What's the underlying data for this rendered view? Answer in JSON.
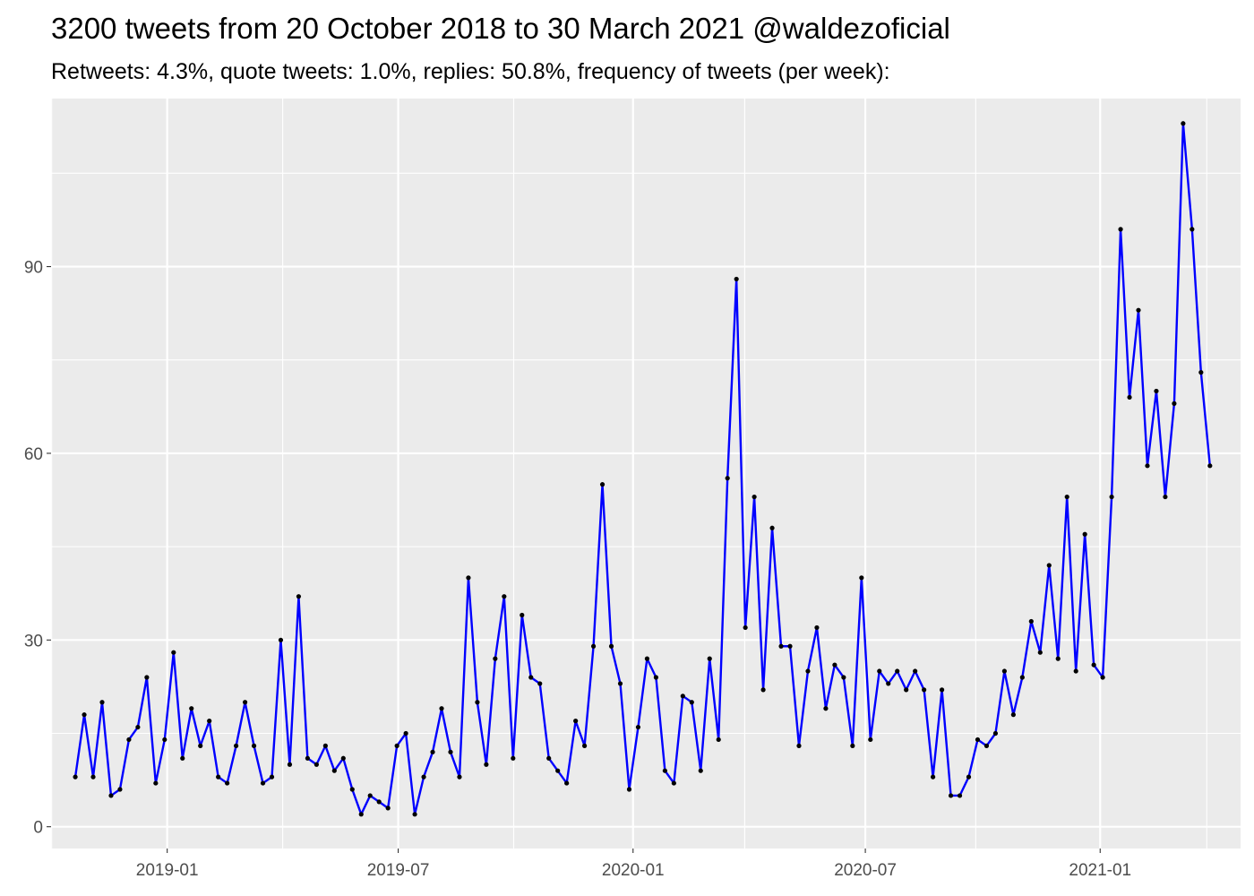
{
  "chart_data": {
    "type": "line",
    "title": "3200 tweets from 20 October 2018 to 30 March 2021 @waldezoficial",
    "subtitle": "Retweets: 4.3%, quote tweets: 1.0%, replies: 50.8%, frequency of tweets (per week):",
    "xlabel": "",
    "ylabel": "",
    "x_axis": {
      "type": "date",
      "range": [
        "2018-10-02",
        "2021-04-21"
      ],
      "tick_labels": [
        "2019-01",
        "2019-07",
        "2020-01",
        "2020-07",
        "2021-01"
      ]
    },
    "y_axis": {
      "range": [
        -3.5,
        117
      ],
      "ticks": [
        0,
        30,
        60,
        90
      ]
    },
    "grid": true,
    "background": "#ebebeb",
    "line_color": "#0000ff",
    "point_color": "#000000",
    "x": [
      "2018-10-21",
      "2018-10-28",
      "2018-11-04",
      "2018-11-11",
      "2018-11-18",
      "2018-11-25",
      "2018-12-02",
      "2018-12-09",
      "2018-12-16",
      "2018-12-23",
      "2018-12-30",
      "2019-01-06",
      "2019-01-13",
      "2019-01-20",
      "2019-01-27",
      "2019-02-03",
      "2019-02-10",
      "2019-02-17",
      "2019-02-24",
      "2019-03-03",
      "2019-03-10",
      "2019-03-17",
      "2019-03-24",
      "2019-03-31",
      "2019-04-07",
      "2019-04-14",
      "2019-04-21",
      "2019-04-28",
      "2019-05-05",
      "2019-05-12",
      "2019-05-19",
      "2019-05-26",
      "2019-06-02",
      "2019-06-09",
      "2019-06-16",
      "2019-06-23",
      "2019-06-30",
      "2019-07-07",
      "2019-07-14",
      "2019-07-21",
      "2019-07-28",
      "2019-08-04",
      "2019-08-11",
      "2019-08-18",
      "2019-08-25",
      "2019-09-01",
      "2019-09-08",
      "2019-09-15",
      "2019-09-22",
      "2019-09-29",
      "2019-10-06",
      "2019-10-13",
      "2019-10-20",
      "2019-10-27",
      "2019-11-03",
      "2019-11-10",
      "2019-11-17",
      "2019-11-24",
      "2019-12-01",
      "2019-12-08",
      "2019-12-15",
      "2019-12-22",
      "2019-12-29",
      "2020-01-05",
      "2020-01-12",
      "2020-01-19",
      "2020-01-26",
      "2020-02-02",
      "2020-02-09",
      "2020-02-16",
      "2020-02-23",
      "2020-03-01",
      "2020-03-08",
      "2020-03-15",
      "2020-03-22",
      "2020-03-29",
      "2020-04-05",
      "2020-04-12",
      "2020-04-19",
      "2020-04-26",
      "2020-05-03",
      "2020-05-10",
      "2020-05-17",
      "2020-05-24",
      "2020-05-31",
      "2020-06-07",
      "2020-06-14",
      "2020-06-21",
      "2020-06-28",
      "2020-07-05",
      "2020-07-12",
      "2020-07-19",
      "2020-07-26",
      "2020-08-02",
      "2020-08-09",
      "2020-08-16",
      "2020-08-23",
      "2020-08-30",
      "2020-09-06",
      "2020-09-13",
      "2020-09-20",
      "2020-09-27",
      "2020-10-04",
      "2020-10-11",
      "2020-10-18",
      "2020-10-25",
      "2020-11-01",
      "2020-11-08",
      "2020-11-15",
      "2020-11-22",
      "2020-11-29",
      "2020-12-06",
      "2020-12-13",
      "2020-12-20",
      "2020-12-27",
      "2021-01-03",
      "2021-01-10",
      "2021-01-17",
      "2021-01-24",
      "2021-01-31",
      "2021-02-07",
      "2021-02-14",
      "2021-02-21",
      "2021-02-28",
      "2021-03-07",
      "2021-03-14",
      "2021-03-21",
      "2021-03-28"
    ],
    "y": [
      8,
      18,
      8,
      20,
      5,
      6,
      14,
      16,
      24,
      7,
      14,
      28,
      11,
      19,
      13,
      17,
      8,
      7,
      13,
      20,
      13,
      7,
      8,
      30,
      10,
      37,
      11,
      10,
      13,
      9,
      11,
      6,
      2,
      5,
      4,
      3,
      13,
      15,
      2,
      8,
      12,
      19,
      12,
      8,
      40,
      20,
      10,
      27,
      37,
      11,
      34,
      24,
      23,
      11,
      9,
      7,
      17,
      13,
      29,
      55,
      29,
      23,
      6,
      16,
      27,
      24,
      9,
      7,
      21,
      20,
      9,
      27,
      14,
      56,
      88,
      32,
      53,
      22,
      48,
      29,
      29,
      13,
      25,
      32,
      19,
      26,
      24,
      13,
      40,
      14,
      25,
      23,
      25,
      22,
      25,
      22,
      8,
      22,
      5,
      5,
      8,
      14,
      13,
      15,
      25,
      18,
      24,
      33,
      28,
      42,
      27,
      53,
      25,
      47,
      26,
      24,
      53,
      96,
      69,
      83,
      58,
      70,
      53,
      68,
      113,
      96,
      73,
      58
    ]
  }
}
